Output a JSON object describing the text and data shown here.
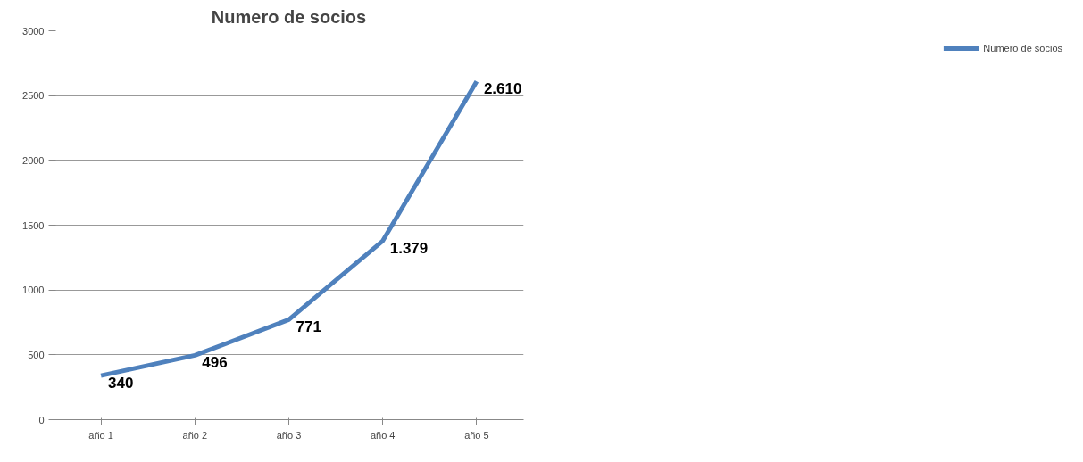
{
  "chart_data": {
    "type": "line",
    "title": "Numero de socios",
    "categories": [
      "año 1",
      "año 2",
      "año 3",
      "año 4",
      "año 5"
    ],
    "series": [
      {
        "name": "Numero de socios",
        "color": "#4f81bd",
        "values": [
          340,
          496,
          771,
          1379,
          2610
        ],
        "value_labels": [
          "340",
          "496",
          "771",
          "1.379",
          "2.610"
        ]
      }
    ],
    "ylim": [
      0,
      3000
    ],
    "yticks": [
      0,
      500,
      1000,
      1500,
      2000,
      2500,
      3000
    ],
    "grid": "y",
    "legend": "right",
    "marker": "none",
    "line_style": "solid"
  }
}
